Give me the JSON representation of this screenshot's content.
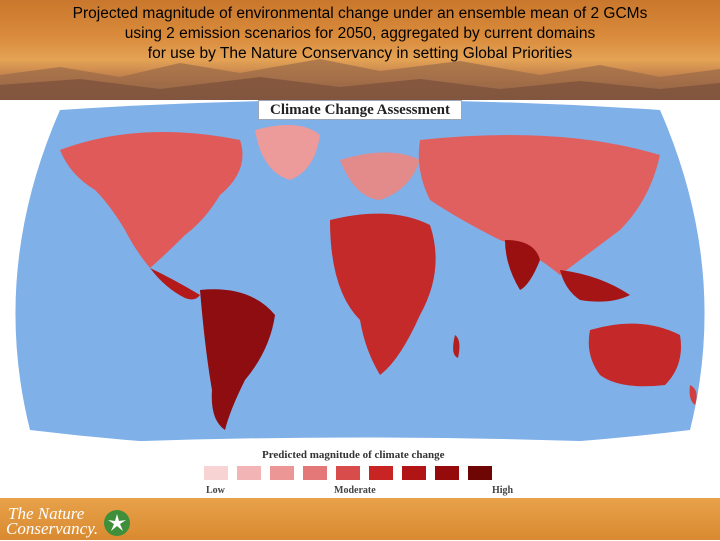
{
  "header": {
    "line1": "Projected magnitude of environmental change under an ensemble mean of 2 GCMs",
    "line2": "using 2 emission scenarios for 2050, aggregated by current domains",
    "line3": "for use by The Nature Conservancy in setting Global Priorities"
  },
  "map": {
    "title": "Climate Change Assessment",
    "ocean_color": "#7fb0e8",
    "land_colors": [
      "#f6c7c4",
      "#e98b86",
      "#d24a45",
      "#a9161b",
      "#7a0d10"
    ]
  },
  "legend": {
    "title": "Predicted magnitude of climate change",
    "low_label": "Low",
    "moderate_label": "Moderate",
    "high_label": "High",
    "swatches": [
      "#f7d3d3",
      "#f2b4b4",
      "#ec9696",
      "#e47777",
      "#d84c4c",
      "#c82424",
      "#b01414",
      "#950b0b",
      "#6e0606"
    ]
  },
  "footer": {
    "logo_line1": "The Nature",
    "logo_line2": "Conservancy.",
    "logo_icon": "leaf-icon"
  }
}
